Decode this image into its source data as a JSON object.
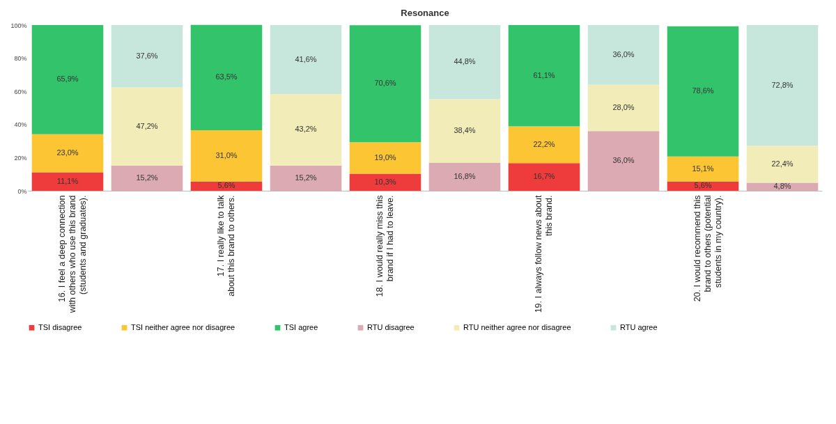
{
  "chart_data": {
    "type": "bar",
    "title": "Resonance",
    "stacked": true,
    "legend": "bottom",
    "grid": false,
    "categories": [
      "16. I feel a deep connection with others who use this brand (students and graduates).",
      null,
      "17. I really like to talk about this brand to others.",
      null,
      "18. I would really miss this brand if I had to leave.",
      null,
      "19. I always follow news about this brand.",
      null,
      "20. I would recommend this brand to others (potential students in my country).",
      null
    ],
    "ylim": [
      0,
      100
    ],
    "yticks": [
      {
        "value": 0,
        "label": "0%"
      },
      {
        "value": 20,
        "label": "20%"
      },
      {
        "value": 40,
        "label": "40%"
      },
      {
        "value": 60,
        "label": "60%"
      },
      {
        "value": 80,
        "label": "80%"
      },
      {
        "value": 100,
        "label": "100%"
      }
    ],
    "series": [
      {
        "name": "TSI disagree",
        "color": "#ee3b3b",
        "values": [
          11.1,
          null,
          5.6,
          null,
          10.3,
          null,
          16.7,
          null,
          5.6,
          null
        ],
        "value_labels": [
          "11,1%",
          null,
          "5,6%",
          null,
          "10,3%",
          null,
          "16,7%",
          null,
          "5,6%",
          null
        ]
      },
      {
        "name": "TSI neither agree nor disagree",
        "color": "#fbc534",
        "values": [
          23.0,
          null,
          31.0,
          null,
          19.0,
          null,
          22.2,
          null,
          15.1,
          null
        ],
        "value_labels": [
          "23,0%",
          null,
          "31,0%",
          null,
          "19,0%",
          null,
          "22,2%",
          null,
          "15,1%",
          null
        ]
      },
      {
        "name": "TSI agree",
        "color": "#33c36b",
        "values": [
          65.9,
          null,
          63.5,
          null,
          70.6,
          null,
          61.1,
          null,
          78.6,
          null
        ],
        "value_labels": [
          "65,9%",
          null,
          "63,5%",
          null,
          "70,6%",
          null,
          "61,1%",
          null,
          "78,6%",
          null
        ]
      },
      {
        "name": "RTU disagree",
        "color": "#dcaab3",
        "values": [
          null,
          15.2,
          null,
          15.2,
          null,
          16.8,
          null,
          36.0,
          null,
          4.8
        ],
        "value_labels": [
          null,
          "15,2%",
          null,
          "15,2%",
          null,
          "16,8%",
          null,
          "36,0%",
          null,
          "4,8%"
        ]
      },
      {
        "name": "RTU neither agree nor disagree",
        "color": "#f2ecb8",
        "values": [
          null,
          47.2,
          null,
          43.2,
          null,
          38.4,
          null,
          28.0,
          null,
          22.4
        ],
        "value_labels": [
          null,
          "47,2%",
          null,
          "43,2%",
          null,
          "38,4%",
          null,
          "28,0%",
          null,
          "22,4%"
        ]
      },
      {
        "name": "RTU agree",
        "color": "#c7e7dd",
        "values": [
          null,
          37.6,
          null,
          41.6,
          null,
          44.8,
          null,
          36.0,
          null,
          72.8
        ],
        "value_labels": [
          null,
          "37,6%",
          null,
          "41,6%",
          null,
          "44,8%",
          null,
          "36,0%",
          null,
          "72,8%"
        ]
      }
    ]
  }
}
